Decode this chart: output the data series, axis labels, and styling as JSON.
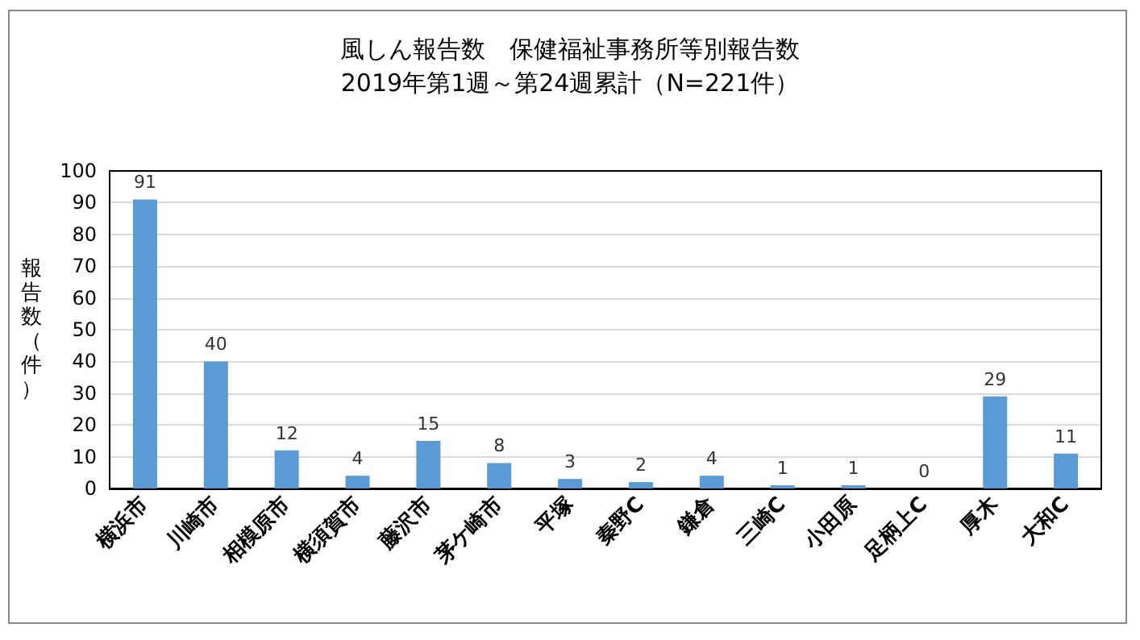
{
  "chart_data": {
    "type": "bar",
    "title": "風しん報告数　保健福祉事務所等別報告数",
    "subtitle": "2019年第1週～第24週累計（N=221件）",
    "ylabel": "報告数（件）",
    "categories": [
      "横浜市",
      "川崎市",
      "相模原市",
      "横須賀市",
      "藤沢市",
      "茅ケ崎市",
      "平塚",
      "秦野C",
      "鎌倉",
      "三崎C",
      "小田原",
      "足柄上C",
      "厚木",
      "大和C"
    ],
    "values": [
      91,
      40,
      12,
      4,
      15,
      8,
      3,
      2,
      4,
      1,
      1,
      0,
      29,
      11
    ],
    "color": "#5b9bd5",
    "ylim": [
      0,
      100
    ],
    "yticks": [
      0,
      10,
      20,
      30,
      40,
      50,
      60,
      70,
      80,
      90,
      100
    ],
    "grid": "y",
    "data_labels": true
  }
}
